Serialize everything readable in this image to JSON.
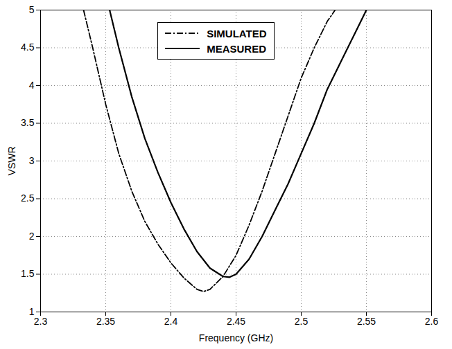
{
  "chart_data": {
    "type": "line",
    "xlabel": "Frequency (GHz)",
    "ylabel": "VSWR",
    "xlim": [
      2.3,
      2.6
    ],
    "ylim": [
      1,
      5
    ],
    "xticks": [
      2.3,
      2.35,
      2.4,
      2.45,
      2.5,
      2.55,
      2.6
    ],
    "yticks": [
      1,
      1.5,
      2,
      2.5,
      3,
      3.5,
      4,
      4.5,
      5
    ],
    "grid": true,
    "legend": "top",
    "series": [
      {
        "name": "SIMULATED",
        "color": "#000000",
        "line_style": "dashdot",
        "x": [
          2.333,
          2.34,
          2.35,
          2.36,
          2.37,
          2.38,
          2.39,
          2.4,
          2.41,
          2.42,
          2.425,
          2.43,
          2.44,
          2.45,
          2.46,
          2.47,
          2.48,
          2.49,
          2.5,
          2.51,
          2.52,
          2.526
        ],
        "values": [
          5.0,
          4.5,
          3.75,
          3.1,
          2.6,
          2.2,
          1.9,
          1.65,
          1.45,
          1.3,
          1.27,
          1.3,
          1.47,
          1.75,
          2.15,
          2.6,
          3.1,
          3.6,
          4.1,
          4.5,
          4.85,
          5.0
        ]
      },
      {
        "name": "MEASURED",
        "color": "#000000",
        "line_style": "solid",
        "x": [
          2.353,
          2.36,
          2.37,
          2.38,
          2.39,
          2.4,
          2.41,
          2.42,
          2.43,
          2.44,
          2.445,
          2.45,
          2.46,
          2.47,
          2.48,
          2.49,
          2.5,
          2.51,
          2.52,
          2.53,
          2.54,
          2.55
        ],
        "values": [
          5.0,
          4.5,
          3.85,
          3.3,
          2.85,
          2.45,
          2.1,
          1.8,
          1.58,
          1.47,
          1.46,
          1.5,
          1.7,
          2.0,
          2.35,
          2.7,
          3.1,
          3.5,
          3.95,
          4.3,
          4.65,
          5.0
        ]
      }
    ]
  }
}
